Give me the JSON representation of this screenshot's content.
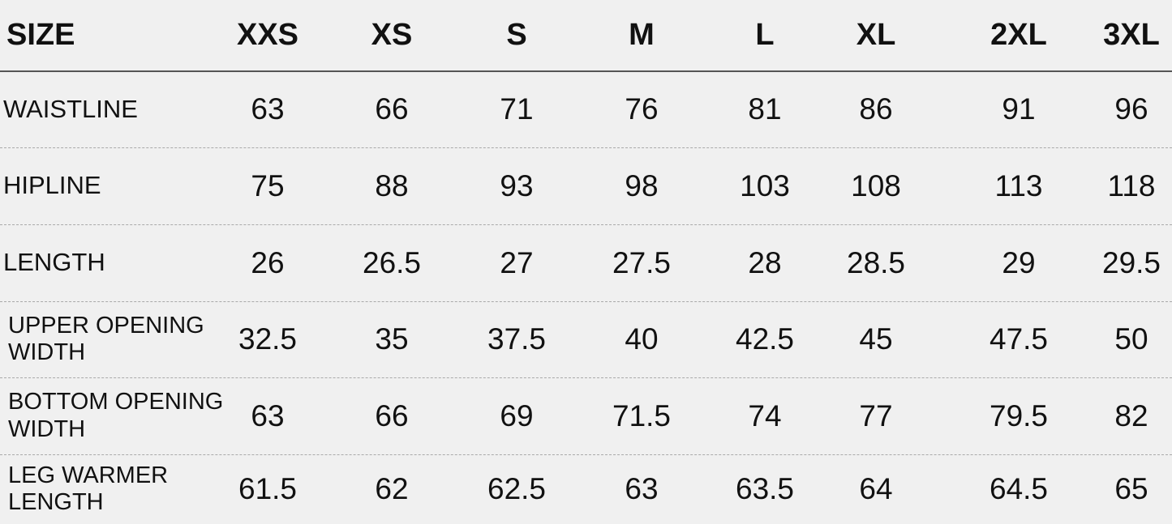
{
  "table": {
    "header": [
      "SIZE",
      "XXS",
      "XS",
      "S",
      "M",
      "L",
      "XL",
      "2XL",
      "3XL"
    ],
    "rows": [
      {
        "label": [
          "WAISTLINE"
        ],
        "values": [
          63,
          66,
          71,
          76,
          81,
          86,
          91,
          96
        ]
      },
      {
        "label": [
          "HIPLINE"
        ],
        "values": [
          75,
          88,
          93,
          98,
          103,
          108,
          113,
          118
        ]
      },
      {
        "label": [
          "LENGTH"
        ],
        "values": [
          26,
          26.5,
          27,
          27.5,
          28,
          28.5,
          29,
          29.5
        ]
      },
      {
        "label": [
          "UPPER OPENING",
          "WIDTH"
        ],
        "values": [
          32.5,
          35,
          37.5,
          40,
          42.5,
          45,
          47.5,
          50
        ]
      },
      {
        "label": [
          "BOTTOM OPENING",
          "WIDTH"
        ],
        "values": [
          63,
          66,
          69,
          71.5,
          74,
          77,
          79.5,
          82
        ]
      },
      {
        "label": [
          "LEG WARMER",
          "LENGTH"
        ],
        "values": [
          61.5,
          62,
          62.5,
          63,
          63.5,
          64,
          64.5,
          65
        ]
      }
    ]
  }
}
